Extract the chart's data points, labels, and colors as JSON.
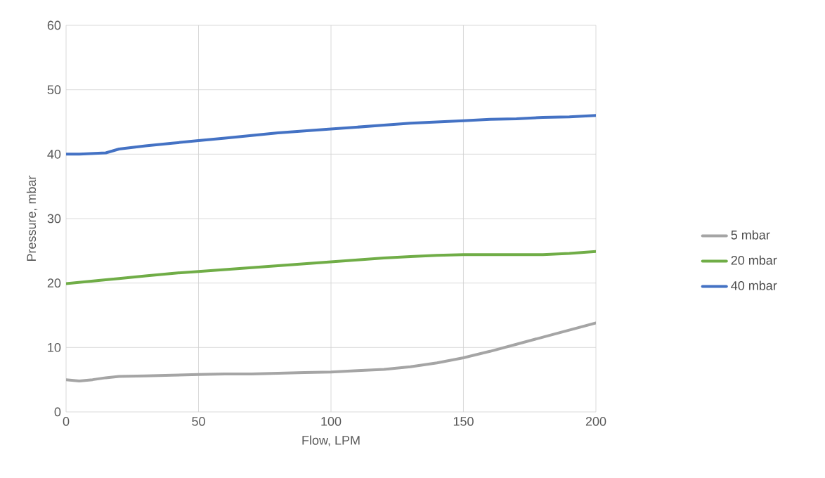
{
  "chart_data": {
    "type": "line",
    "xlabel": "Flow, LPM",
    "ylabel": "Pressure, mbar",
    "x": [
      0,
      5,
      10,
      15,
      20,
      30,
      40,
      50,
      60,
      70,
      80,
      90,
      100,
      110,
      120,
      130,
      140,
      150,
      160,
      170,
      180,
      190,
      200
    ],
    "series": [
      {
        "name": "5 mbar",
        "color": "#a5a5a5",
        "values": [
          5.0,
          4.8,
          5.0,
          5.3,
          5.5,
          5.6,
          5.7,
          5.8,
          5.9,
          5.9,
          6.0,
          6.1,
          6.2,
          6.4,
          6.6,
          7.0,
          7.6,
          8.4,
          9.4,
          10.5,
          11.6,
          12.7,
          13.8
        ]
      },
      {
        "name": "20 mbar",
        "color": "#70ad47",
        "values": [
          19.9,
          20.1,
          20.3,
          20.5,
          20.7,
          21.1,
          21.5,
          21.8,
          22.1,
          22.4,
          22.7,
          23.0,
          23.3,
          23.6,
          23.9,
          24.1,
          24.3,
          24.4,
          24.4,
          24.4,
          24.4,
          24.6,
          24.9
        ]
      },
      {
        "name": "40 mbar",
        "color": "#4472c4",
        "values": [
          40.0,
          40.0,
          40.1,
          40.2,
          40.8,
          41.3,
          41.7,
          42.1,
          42.5,
          42.9,
          43.3,
          43.6,
          43.9,
          44.2,
          44.5,
          44.8,
          45.0,
          45.2,
          45.4,
          45.5,
          45.7,
          45.8,
          46.0
        ]
      }
    ],
    "xlim": [
      0,
      200
    ],
    "xticks": [
      0,
      50,
      100,
      150,
      200
    ],
    "ylim": [
      0,
      60
    ],
    "yticks": [
      0,
      10,
      20,
      30,
      40,
      50,
      60
    ],
    "grid": true,
    "legend": "right",
    "marker": "none",
    "line_style": "solid"
  }
}
